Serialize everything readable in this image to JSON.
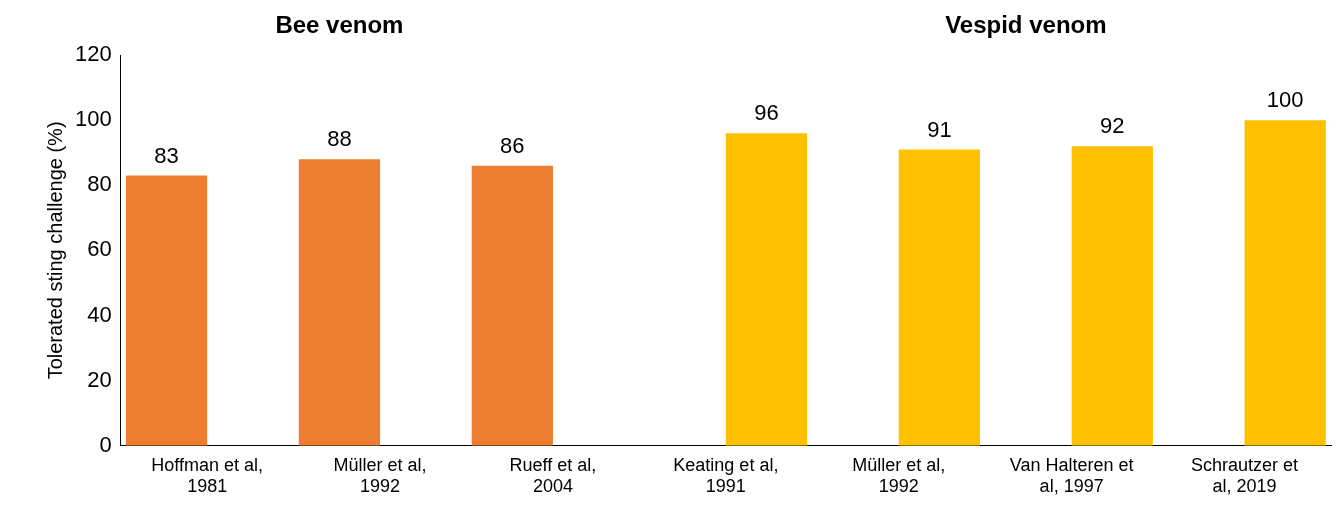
{
  "chart_data": {
    "type": "bar",
    "ylabel": "Tolerated sting challenge (%)",
    "categories": [
      "Hoffman et al, 1981",
      "Müller et al, 1992",
      "Rueff et al, 2004",
      "Keating et al, 1991",
      "Müller et al, 1992",
      "Van Halteren et al, 1997",
      "Schrautzer et al, 2019"
    ],
    "series": [
      {
        "color": "#ed7d31",
        "values": [
          83,
          88,
          86,
          null,
          null,
          null,
          null
        ]
      },
      {
        "color": "#ffc000",
        "values": [
          null,
          null,
          null,
          96,
          91,
          92,
          100
        ]
      }
    ],
    "annotations": [
      "Bee venom",
      "Vespid venom"
    ],
    "ylim": [
      0,
      120
    ],
    "yticks": [
      0,
      20,
      40,
      60,
      80,
      100,
      120
    ],
    "grid": false,
    "legend": false,
    "data_labels": true
  }
}
